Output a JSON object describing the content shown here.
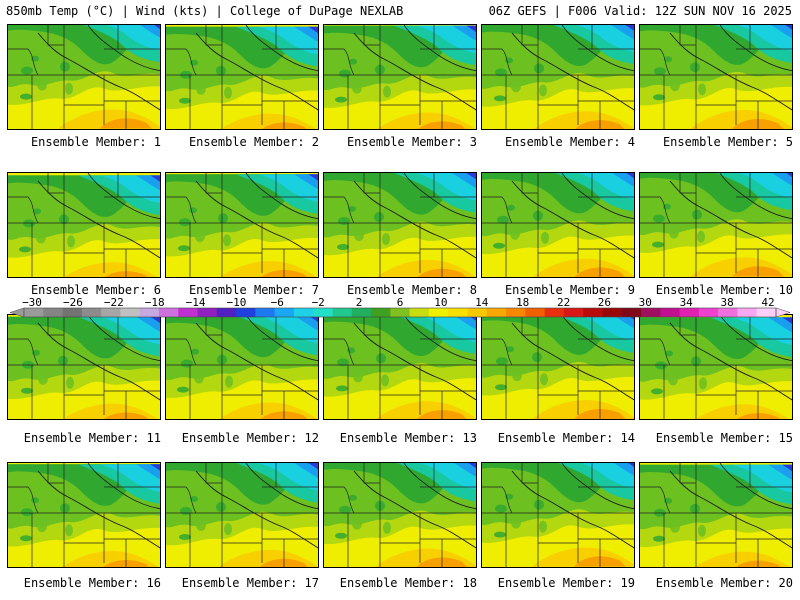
{
  "header": {
    "left": "850mb Temp (°C) | Wind (kts) | College of DuPage NEXLAB",
    "right": "06Z GEFS | F006 Valid: 12Z SUN NOV 16 2025"
  },
  "caption_prefix": "Ensemble Member: ",
  "members": [
    {
      "label": "Ensemble Member: 1"
    },
    {
      "label": "Ensemble Member: 2"
    },
    {
      "label": "Ensemble Member: 3"
    },
    {
      "label": "Ensemble Member: 4"
    },
    {
      "label": "Ensemble Member: 5"
    },
    {
      "label": "Ensemble Member: 6"
    },
    {
      "label": "Ensemble Member: 7"
    },
    {
      "label": "Ensemble Member: 8"
    },
    {
      "label": "Ensemble Member: 9"
    },
    {
      "label": "Ensemble Member: 10"
    },
    {
      "label": "Ensemble Member: 11"
    },
    {
      "label": "Ensemble Member: 12"
    },
    {
      "label": "Ensemble Member: 13"
    },
    {
      "label": "Ensemble Member: 14"
    },
    {
      "label": "Ensemble Member: 15"
    },
    {
      "label": "Ensemble Member: 16"
    },
    {
      "label": "Ensemble Member: 17"
    },
    {
      "label": "Ensemble Member: 18"
    },
    {
      "label": "Ensemble Member: 19"
    },
    {
      "label": "Ensemble Member: 20"
    }
  ],
  "colorbar": {
    "labels": [
      "-30",
      "-26",
      "-22",
      "-18",
      "-14",
      "-10",
      "-6",
      "-2",
      "2",
      "6",
      "10",
      "14",
      "18",
      "22",
      "26",
      "30",
      "34",
      "38",
      "42"
    ],
    "colors": [
      "#9a9a9a",
      "#858585",
      "#737373",
      "#8c8c8c",
      "#a6a6a6",
      "#c0c0c0",
      "#c8a8e0",
      "#d070e0",
      "#c030d0",
      "#9020c0",
      "#5020c0",
      "#2040e0",
      "#1e78f0",
      "#1aa8f5",
      "#1ed0e8",
      "#22e0c8",
      "#20c890",
      "#20b060",
      "#40a020",
      "#80c020",
      "#c8dc10",
      "#f0f000",
      "#f8e000",
      "#f8c800",
      "#f8a800",
      "#f88800",
      "#f06000",
      "#e83010",
      "#d81818",
      "#b80c0c",
      "#980808",
      "#800818",
      "#a01060",
      "#c01090",
      "#e020b0",
      "#f040d0",
      "#f070e0",
      "#f8a8f0",
      "#fbd0f8"
    ]
  },
  "map_colors": {
    "blue": "#2a3ad8",
    "lightblue": "#1a9ef0",
    "cyan": "#18d0e0",
    "teal": "#18c8a0",
    "green": "#30a830",
    "lime": "#6cc020",
    "yellowgreen": "#b4d810",
    "yellow": "#f0ee00",
    "gold": "#f8d000",
    "orange": "#f8a000"
  }
}
